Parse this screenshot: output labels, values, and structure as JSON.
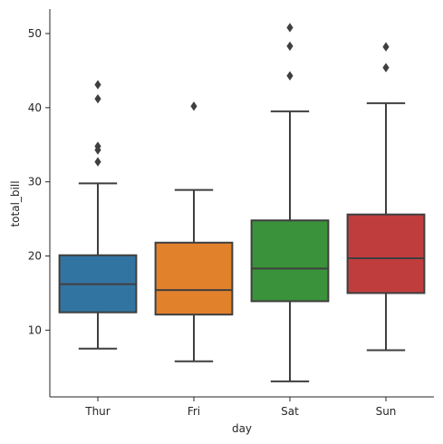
{
  "chart_data": {
    "type": "boxplot",
    "title": "",
    "xlabel": "day",
    "ylabel": "total_bill",
    "categories": [
      "Thur",
      "Fri",
      "Sat",
      "Sun"
    ],
    "ylim": [
      1,
      53.3
    ],
    "yticks": [
      10,
      20,
      30,
      40,
      50
    ],
    "grid": false,
    "legend": "none",
    "boxes": [
      {
        "category": "Thur",
        "color": "#3274a1",
        "whisker_low": 7.5,
        "q1": 12.4,
        "median": 16.2,
        "q3": 20.1,
        "whisker_high": 29.8,
        "outliers": [
          32.7,
          34.3,
          34.8,
          41.2,
          43.1
        ]
      },
      {
        "category": "Fri",
        "color": "#e1812c",
        "whisker_low": 5.8,
        "q1": 12.1,
        "median": 15.4,
        "q3": 21.8,
        "whisker_high": 28.9,
        "outliers": [
          40.2
        ]
      },
      {
        "category": "Sat",
        "color": "#3a923a",
        "whisker_low": 3.1,
        "q1": 13.9,
        "median": 18.3,
        "q3": 24.8,
        "whisker_high": 39.5,
        "outliers": [
          44.3,
          48.3,
          50.8
        ]
      },
      {
        "category": "Sun",
        "color": "#c03d3e",
        "whisker_low": 7.3,
        "q1": 15.0,
        "median": 19.7,
        "q3": 25.6,
        "whisker_high": 40.6,
        "outliers": [
          45.4,
          48.2
        ]
      }
    ]
  }
}
